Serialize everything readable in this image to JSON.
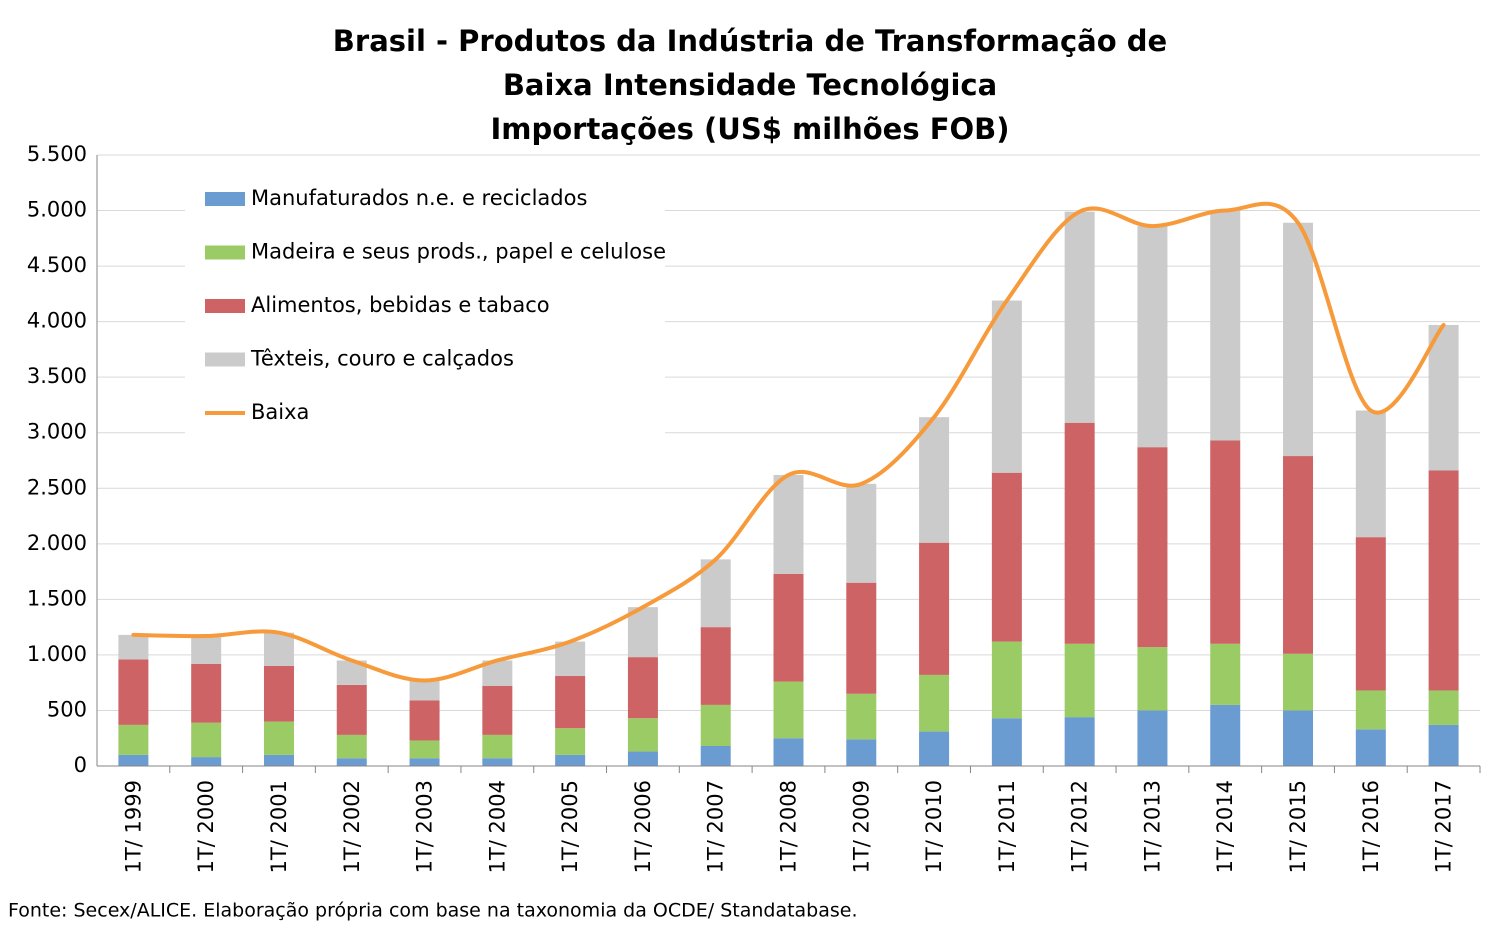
{
  "chart_data": {
    "type": "bar",
    "title": [
      "Brasil - Produtos da Indústria de Transformação de",
      "Baixa Intensidade Tecnológica",
      "Importações (US$ milhões FOB)"
    ],
    "source": "Fonte: Secex/ALICE. Elaboração própria com base na taxonomia da OCDE/ Standatabase.",
    "stacked": true,
    "categories": [
      "1T/ 1999",
      "1T/ 2000",
      "1T/ 2001",
      "1T/ 2002",
      "1T/ 2003",
      "1T/ 2004",
      "1T/ 2005",
      "1T/ 2006",
      "1T/ 2007",
      "1T/ 2008",
      "1T/ 2009",
      "1T/ 2010",
      "1T/ 2011",
      "1T/ 2012",
      "1T/ 2013",
      "1T/ 2014",
      "1T/ 2015",
      "1T/ 2016",
      "1T/ 2017"
    ],
    "series": [
      {
        "name": "Manufaturados n.e. e reciclados",
        "type": "bar",
        "color": "#6a9bd1",
        "values": [
          100,
          80,
          100,
          70,
          70,
          70,
          100,
          130,
          180,
          250,
          240,
          310,
          430,
          440,
          500,
          550,
          500,
          330,
          370
        ]
      },
      {
        "name": "Madeira e seus prods., papel e celulose",
        "type": "bar",
        "color": "#9bcb64",
        "values": [
          270,
          310,
          300,
          210,
          160,
          210,
          240,
          300,
          370,
          510,
          410,
          510,
          690,
          660,
          570,
          550,
          510,
          350,
          310
        ]
      },
      {
        "name": "Alimentos, bebidas e tabaco",
        "type": "bar",
        "color": "#cd6364",
        "values": [
          590,
          530,
          500,
          450,
          360,
          440,
          470,
          550,
          700,
          970,
          1000,
          1190,
          1520,
          1990,
          1800,
          1830,
          1780,
          1380,
          1980
        ]
      },
      {
        "name": "Têxteis, couro e calçados",
        "type": "bar",
        "color": "#cbcbcb",
        "values": [
          220,
          250,
          300,
          220,
          180,
          230,
          310,
          450,
          610,
          890,
          890,
          1130,
          1550,
          1900,
          1990,
          2070,
          2100,
          1140,
          1310
        ]
      },
      {
        "name": "Baixa",
        "type": "line",
        "color": "#f79a3b",
        "values": [
          1180,
          1170,
          1200,
          950,
          770,
          950,
          1120,
          1430,
          1860,
          2620,
          2540,
          3140,
          4190,
          4990,
          4860,
          5000,
          4890,
          3200,
          3970
        ]
      }
    ],
    "ylim": [
      0,
      5500
    ],
    "yticks": [
      0,
      500,
      {
        "value": 1000,
        "label": "1.000"
      },
      {
        "value": 1500,
        "label": "1.500"
      },
      {
        "value": 2000,
        "label": "2.000"
      },
      {
        "value": 2500,
        "label": "2.500"
      },
      {
        "value": 3000,
        "label": "3.000"
      },
      {
        "value": 3500,
        "label": "3.500"
      },
      {
        "value": 4000,
        "label": "4.000"
      },
      {
        "value": 4500,
        "label": "4.500"
      },
      {
        "value": 5000,
        "label": "5.000"
      },
      {
        "value": 5500,
        "label": "5.500"
      }
    ],
    "grid": true,
    "legend": "upper left"
  }
}
